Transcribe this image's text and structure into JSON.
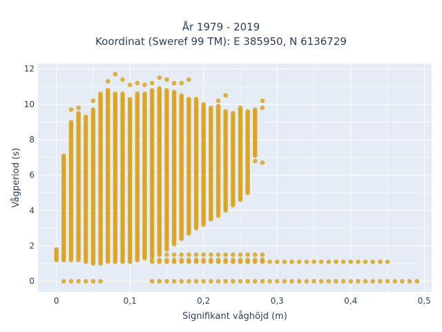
{
  "chart_data": {
    "type": "scatter",
    "title_line1": "År 1979 - 2019",
    "title_line2": "Koordinat (Sweref 99 TM): E 385950, N 6136729",
    "xlabel": "Signifikant våghöjd (m)",
    "ylabel": "Vågperiod (s)",
    "xlim": [
      -0.025,
      0.51
    ],
    "ylim": [
      -0.6,
      12.3
    ],
    "x_ticks": [
      0,
      0.1,
      0.2,
      0.3,
      0.4,
      0.5
    ],
    "x_tick_labels": [
      "0",
      "0,1",
      "0,2",
      "0,3",
      "0,4",
      "0,5"
    ],
    "y_ticks": [
      0,
      2,
      4,
      6,
      8,
      10,
      12
    ],
    "y_tick_labels": [
      "0",
      "2",
      "4",
      "6",
      "8",
      "10",
      "12"
    ],
    "grid": true,
    "colors": {
      "marker": "#DAA520",
      "plot_bg": "#E5ECF6",
      "grid": "#ffffff",
      "text": "#2a3f5f"
    },
    "columns": [
      {
        "x": 0.0,
        "ymin": 1.2,
        "ymax": 1.8
      },
      {
        "x": 0.01,
        "ymin": 1.2,
        "ymax": 7.1
      },
      {
        "x": 0.02,
        "ymin": 1.2,
        "ymax": 9.0
      },
      {
        "x": 0.03,
        "ymin": 1.2,
        "ymax": 9.5
      },
      {
        "x": 0.04,
        "ymin": 1.1,
        "ymax": 9.3
      },
      {
        "x": 0.05,
        "ymin": 1.0,
        "ymax": 9.7
      },
      {
        "x": 0.06,
        "ymin": 1.0,
        "ymax": 10.6
      },
      {
        "x": 0.07,
        "ymin": 1.1,
        "ymax": 10.8
      },
      {
        "x": 0.08,
        "ymin": 1.1,
        "ymax": 10.6
      },
      {
        "x": 0.09,
        "ymin": 1.1,
        "ymax": 10.6
      },
      {
        "x": 0.1,
        "ymin": 1.1,
        "ymax": 10.3
      },
      {
        "x": 0.11,
        "ymin": 1.2,
        "ymax": 10.6
      },
      {
        "x": 0.12,
        "ymin": 1.3,
        "ymax": 10.6
      },
      {
        "x": 0.13,
        "ymin": 1.4,
        "ymax": 10.8
      },
      {
        "x": 0.14,
        "ymin": 1.6,
        "ymax": 10.9
      },
      {
        "x": 0.15,
        "ymin": 1.8,
        "ymax": 10.8
      },
      {
        "x": 0.16,
        "ymin": 2.1,
        "ymax": 10.7
      },
      {
        "x": 0.17,
        "ymin": 2.4,
        "ymax": 10.5
      },
      {
        "x": 0.18,
        "ymin": 2.7,
        "ymax": 10.3
      },
      {
        "x": 0.19,
        "ymin": 3.0,
        "ymax": 10.3
      },
      {
        "x": 0.2,
        "ymin": 3.2,
        "ymax": 10.0
      },
      {
        "x": 0.21,
        "ymin": 3.5,
        "ymax": 9.8
      },
      {
        "x": 0.22,
        "ymin": 3.7,
        "ymax": 9.9
      },
      {
        "x": 0.23,
        "ymin": 4.0,
        "ymax": 9.6
      },
      {
        "x": 0.24,
        "ymin": 4.3,
        "ymax": 9.5
      },
      {
        "x": 0.25,
        "ymin": 4.6,
        "ymax": 9.8
      },
      {
        "x": 0.26,
        "ymin": 5.0,
        "ymax": 9.6
      },
      {
        "x": 0.27,
        "ymin": 7.1,
        "ymax": 9.7
      }
    ],
    "outliers": [
      {
        "x": 0.08,
        "y": 11.7
      },
      {
        "x": 0.09,
        "y": 11.4
      },
      {
        "x": 0.07,
        "y": 11.3
      },
      {
        "x": 0.1,
        "y": 11.1
      },
      {
        "x": 0.11,
        "y": 11.2
      },
      {
        "x": 0.12,
        "y": 11.1
      },
      {
        "x": 0.13,
        "y": 11.2
      },
      {
        "x": 0.14,
        "y": 11.5
      },
      {
        "x": 0.15,
        "y": 11.4
      },
      {
        "x": 0.16,
        "y": 11.2
      },
      {
        "x": 0.17,
        "y": 11.2
      },
      {
        "x": 0.18,
        "y": 11.4
      },
      {
        "x": 0.22,
        "y": 10.2
      },
      {
        "x": 0.23,
        "y": 10.5
      },
      {
        "x": 0.28,
        "y": 10.2
      },
      {
        "x": 0.28,
        "y": 9.8
      },
      {
        "x": 0.28,
        "y": 6.7
      },
      {
        "x": 0.27,
        "y": 6.8
      },
      {
        "x": 0.02,
        "y": 9.7
      },
      {
        "x": 0.03,
        "y": 9.8
      },
      {
        "x": 0.05,
        "y": 10.2
      },
      {
        "x": 0.01,
        "y": 5.6
      },
      {
        "x": 0.01,
        "y": 3.0
      }
    ],
    "low_band_x": [
      0.13,
      0.14,
      0.15,
      0.16,
      0.17,
      0.18,
      0.19,
      0.2,
      0.21,
      0.22,
      0.23,
      0.24,
      0.25,
      0.26,
      0.27,
      0.28
    ],
    "low_band_y": [
      1.1,
      1.2,
      1.5
    ],
    "tail_points": [
      {
        "x": 0.28,
        "y": 1.2
      },
      {
        "x": 0.29,
        "y": 1.1
      },
      {
        "x": 0.3,
        "y": 1.1
      },
      {
        "x": 0.31,
        "y": 1.1
      },
      {
        "x": 0.32,
        "y": 1.1
      },
      {
        "x": 0.33,
        "y": 1.1
      },
      {
        "x": 0.34,
        "y": 1.1
      },
      {
        "x": 0.35,
        "y": 1.1
      },
      {
        "x": 0.36,
        "y": 1.1
      },
      {
        "x": 0.37,
        "y": 1.1
      },
      {
        "x": 0.38,
        "y": 1.1
      },
      {
        "x": 0.39,
        "y": 1.1
      },
      {
        "x": 0.4,
        "y": 1.1
      },
      {
        "x": 0.41,
        "y": 1.1
      },
      {
        "x": 0.42,
        "y": 1.1
      },
      {
        "x": 0.43,
        "y": 1.1
      },
      {
        "x": 0.44,
        "y": 1.1
      },
      {
        "x": 0.45,
        "y": 1.1
      }
    ],
    "zero_row_x": [
      0.01,
      0.02,
      0.03,
      0.04,
      0.05,
      0.06,
      0.13,
      0.14,
      0.15,
      0.16,
      0.17,
      0.18,
      0.19,
      0.2,
      0.21,
      0.22,
      0.23,
      0.24,
      0.25,
      0.26,
      0.27,
      0.28,
      0.29,
      0.3,
      0.31,
      0.32,
      0.33,
      0.34,
      0.35,
      0.36,
      0.37,
      0.38,
      0.39,
      0.4,
      0.41,
      0.42,
      0.43,
      0.44,
      0.45,
      0.46,
      0.47,
      0.48,
      0.49
    ]
  }
}
